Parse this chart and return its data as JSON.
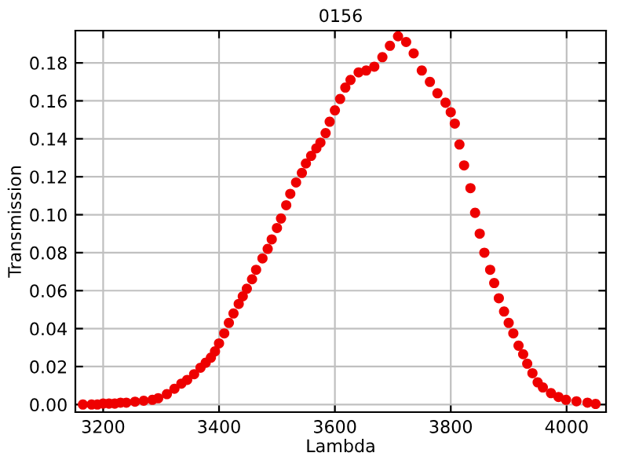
{
  "chart_data": {
    "type": "scatter",
    "title": "0156",
    "xlabel": "Lambda",
    "ylabel": "Transmission",
    "xlim": [
      3152,
      4068
    ],
    "ylim": [
      -0.004,
      0.197
    ],
    "xticks": [
      3200,
      3400,
      3600,
      3800,
      4000
    ],
    "yticks": [
      {
        "value": 0,
        "label": "0.00"
      },
      {
        "value": 0.02,
        "label": "0.02"
      },
      {
        "value": 0.04,
        "label": "0.04"
      },
      {
        "value": 0.06,
        "label": "0.06"
      },
      {
        "value": 0.08,
        "label": "0.08"
      },
      {
        "value": 0.1,
        "label": "0.10"
      },
      {
        "value": 0.12,
        "label": "0.12"
      },
      {
        "value": 0.14,
        "label": "0.14"
      },
      {
        "value": 0.16,
        "label": "0.16"
      },
      {
        "value": 0.18,
        "label": "0.18"
      }
    ],
    "grid": true,
    "marker": "circle",
    "series": [
      {
        "color": "#ee0000",
        "x": [
          3165,
          3180,
          3190,
          3200,
          3210,
          3220,
          3230,
          3240,
          3255,
          3270,
          3285,
          3295,
          3310,
          3323,
          3335,
          3345,
          3357,
          3368,
          3377,
          3386,
          3393,
          3400,
          3409,
          3417,
          3425,
          3434,
          3441,
          3448,
          3457,
          3464,
          3475,
          3484,
          3491,
          3500,
          3507,
          3516,
          3523,
          3533,
          3543,
          3550,
          3559,
          3568,
          3575,
          3584,
          3591,
          3600,
          3609,
          3618,
          3627,
          3641,
          3654,
          3668,
          3682,
          3695,
          3709,
          3723,
          3736,
          3750,
          3764,
          3777,
          3791,
          3800,
          3807,
          3815,
          3823,
          3834,
          3842,
          3850,
          3858,
          3868,
          3875,
          3883,
          3892,
          3900,
          3908,
          3917,
          3925,
          3932,
          3941,
          3950,
          3959,
          3973,
          3986,
          3999,
          4017,
          4036,
          4050
        ],
        "values": [
          0.0,
          0.0,
          0.0,
          0.0005,
          0.0005,
          0.0005,
          0.001,
          0.001,
          0.0015,
          0.002,
          0.0025,
          0.0033,
          0.0055,
          0.0083,
          0.011,
          0.013,
          0.016,
          0.0194,
          0.022,
          0.0247,
          0.028,
          0.0322,
          0.0375,
          0.043,
          0.048,
          0.053,
          0.057,
          0.061,
          0.066,
          0.071,
          0.077,
          0.082,
          0.087,
          0.093,
          0.098,
          0.105,
          0.111,
          0.117,
          0.122,
          0.127,
          0.131,
          0.135,
          0.138,
          0.143,
          0.149,
          0.155,
          0.161,
          0.167,
          0.171,
          0.175,
          0.176,
          0.178,
          0.183,
          0.189,
          0.194,
          0.191,
          0.185,
          0.176,
          0.17,
          0.164,
          0.159,
          0.154,
          0.148,
          0.137,
          0.126,
          0.114,
          0.101,
          0.09,
          0.08,
          0.071,
          0.064,
          0.056,
          0.049,
          0.043,
          0.0375,
          0.031,
          0.0265,
          0.0215,
          0.0165,
          0.0117,
          0.009,
          0.006,
          0.004,
          0.0025,
          0.0017,
          0.001,
          0.0003
        ]
      }
    ]
  }
}
